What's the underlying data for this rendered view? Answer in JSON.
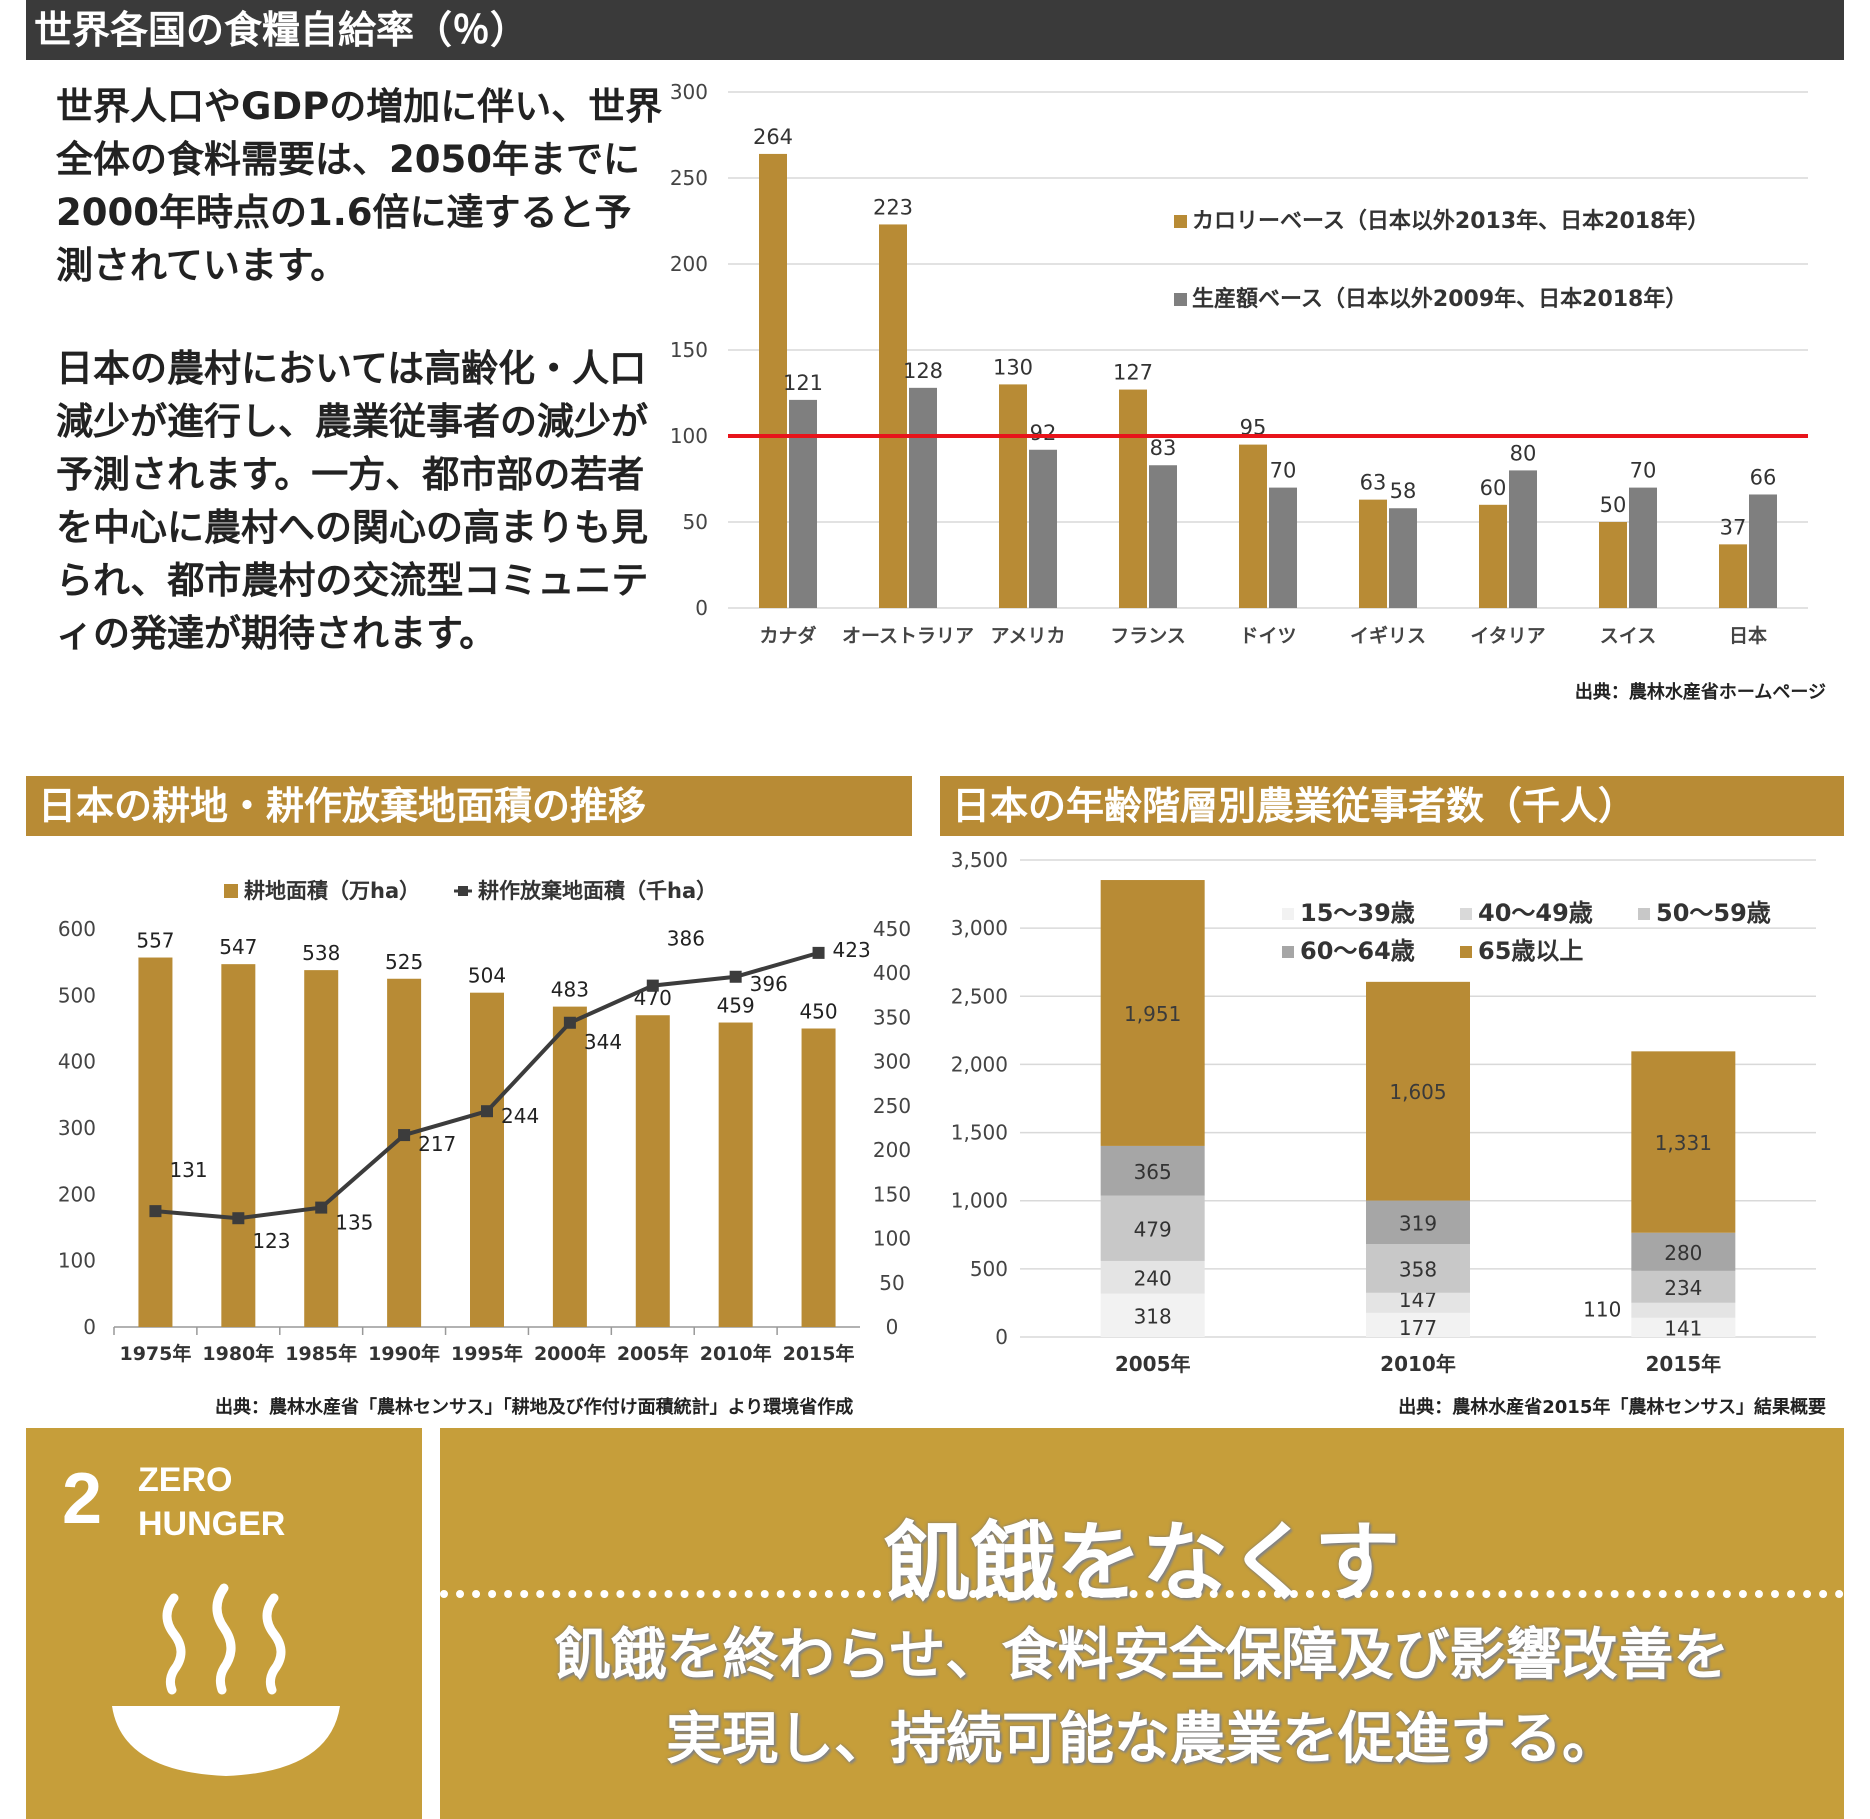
{
  "header": {
    "title": "世界各国の食糧自給率（％）"
  },
  "intro": {
    "p1": "世界人口やGDPの増加に伴い、世界全体の食料需要は、2050年までに2000年時点の1.6倍に達すると予測されています。",
    "p2": "日本の農村においては高齢化・人口減少が進行し、農業従事者の減少が予測されます。一方、都市部の若者を中心に農村への関心の高まりも見られ、都市農村の交流型コミュニティの発達が期待されます。"
  },
  "sections": {
    "farmland_title": "日本の耕地・耕作放棄地面積の推移",
    "workers_title": "日本の年齢階層別農業従事者数（千人）"
  },
  "sources": {
    "chart1": "出典：農林水産省ホームページ",
    "chart2": "出典：農林水産省「農林センサス」「耕地及び作付け面積統計」より環境省作成",
    "chart3": "出典：農林水産省2015年「農林センサス」結果概要"
  },
  "sdg": {
    "number": "2",
    "label_line1": "ZERO",
    "label_line2": "HUNGER",
    "icon": "bowl-steam-icon",
    "title": "飢餓をなくす",
    "subtitle_line1": "飢餓を終わらせ、食料安全保障及び影響改善を",
    "subtitle_line2": "実現し、持続可能な農業を促進する。"
  },
  "colors": {
    "gold": "#b88b35",
    "gray": "#7f7f7f",
    "line": "#3c3c3c",
    "ref": "#e8141b",
    "dark": "#3a3a3a"
  },
  "chart_data": [
    {
      "type": "bar",
      "categories": [
        "カナダ",
        "オーストラリア",
        "アメリカ",
        "フランス",
        "ドイツ",
        "イギリス",
        "イタリア",
        "スイス",
        "日本"
      ],
      "series": [
        {
          "name": "カロリーベース（日本以外2013年、日本2018年）",
          "values": [
            264,
            223,
            130,
            127,
            95,
            63,
            60,
            50,
            37
          ]
        },
        {
          "name": "生産額ベース（日本以外2009年、日本2018年）",
          "values": [
            121,
            128,
            92,
            83,
            70,
            58,
            80,
            70,
            66
          ]
        }
      ],
      "yticks": [
        "0",
        "50",
        "100",
        "150",
        "200",
        "250",
        "300"
      ],
      "ylim": [
        0,
        300
      ],
      "reference_line": 100,
      "legend_position": "top-right",
      "grid": true
    },
    {
      "type": "bar",
      "categories": [
        "1975年",
        "1980年",
        "1985年",
        "1990年",
        "1995年",
        "2000年",
        "2005年",
        "2010年",
        "2015年"
      ],
      "series": [
        {
          "name": "耕地面積（万ha）",
          "type": "bar",
          "axis": "left",
          "values": [
            557,
            547,
            538,
            525,
            504,
            483,
            470,
            459,
            450
          ]
        },
        {
          "name": "耕作放棄地面積（千ha）",
          "type": "line",
          "axis": "right",
          "values": [
            131,
            123,
            135,
            217,
            244,
            344,
            386,
            396,
            423
          ]
        }
      ],
      "yticks_left": [
        "0",
        "100",
        "200",
        "300",
        "400",
        "500",
        "600"
      ],
      "ylim_left": [
        0,
        600
      ],
      "yticks_right": [
        "0",
        "50",
        "100",
        "150",
        "200",
        "250",
        "300",
        "350",
        "400",
        "450"
      ],
      "ylim_right": [
        0,
        450
      ],
      "legend_position": "top",
      "grid": false
    },
    {
      "type": "bar",
      "stacked": true,
      "categories": [
        "2005年",
        "2010年",
        "2015年"
      ],
      "series": [
        {
          "name": "15～39歳",
          "values": [
            318,
            177,
            141
          ]
        },
        {
          "name": "40～49歳",
          "values": [
            240,
            147,
            110
          ]
        },
        {
          "name": "50～59歳",
          "values": [
            479,
            358,
            234
          ]
        },
        {
          "name": "60～64歳",
          "values": [
            365,
            319,
            280
          ]
        },
        {
          "name": "65歳以上",
          "values": [
            1951,
            1605,
            1331
          ]
        }
      ],
      "yticks": [
        "0",
        "500",
        "1,000",
        "1,500",
        "2,000",
        "2,500",
        "3,000",
        "3,500"
      ],
      "ylim": [
        0,
        3500
      ],
      "value_labels": [
        "318",
        "240",
        "479",
        "365",
        "1,951",
        "177",
        "147",
        "358",
        "319",
        "1,605",
        "141",
        "110",
        "234",
        "280",
        "1,331"
      ],
      "legend_position": "top-right",
      "grid": true
    }
  ]
}
